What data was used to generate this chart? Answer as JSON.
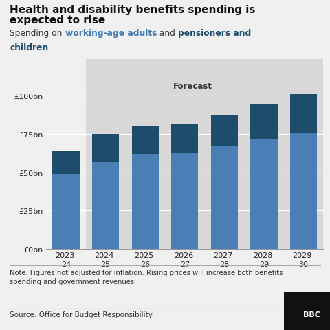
{
  "categories": [
    "2023-\n24",
    "2024-\n25",
    "2025-\n26",
    "2026-\n27",
    "2027-\n28",
    "2028-\n29",
    "2029-\n30"
  ],
  "working_age": [
    49,
    57,
    62,
    63,
    67,
    72,
    76
  ],
  "pensioners": [
    15,
    18,
    18,
    19,
    20,
    23,
    25
  ],
  "color_working_age": "#4a7fb5",
  "color_pensioners": "#1e4d6b",
  "background_color": "#f0f0f0",
  "chart_bg": "#f0f0f0",
  "forecast_bg": "#d8d8d8",
  "title_line1": "Health and disability benefits spending is",
  "title_line2": "expected to rise",
  "subtitle_plain": "Spending on ",
  "subtitle_working": "working-age adults",
  "subtitle_and": " and ",
  "subtitle_pensioners_line1": "pensioners and",
  "subtitle_pensioners_line2": "children",
  "color_subtitle_working": "#3d7ab5",
  "color_subtitle_pensioners": "#1e4d6b",
  "forecast_label": "Forecast",
  "yticks": [
    0,
    25,
    50,
    75,
    100
  ],
  "ylabels": [
    "£0bn",
    "£25bn",
    "£50bn",
    "£75bn",
    "£100bn"
  ],
  "ylim": [
    0,
    108
  ],
  "note": "Note: Figures not adjusted for inflation. Rising prices will increase both benefits\nspending and government revenues",
  "source": "Source: Office for Budget Responsibility",
  "bbc_label": "BBC"
}
